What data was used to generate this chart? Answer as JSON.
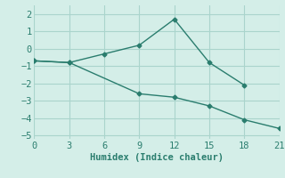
{
  "line1_x": [
    0,
    3,
    6,
    9,
    12,
    15,
    18
  ],
  "line1_y": [
    -0.7,
    -0.8,
    -0.3,
    0.2,
    1.7,
    -0.8,
    -2.1
  ],
  "line2_x": [
    0,
    3,
    9,
    12,
    15,
    18,
    21
  ],
  "line2_y": [
    -0.7,
    -0.8,
    -2.6,
    -2.8,
    -3.3,
    -4.1,
    -4.6
  ],
  "line_color": "#2a7d6e",
  "bg_color": "#d4eee8",
  "grid_color": "#aad4cc",
  "xlabel": "Humidex (Indice chaleur)",
  "xlim": [
    0,
    21
  ],
  "ylim": [
    -5.2,
    2.5
  ],
  "xticks": [
    0,
    3,
    6,
    9,
    12,
    15,
    18,
    21
  ],
  "yticks": [
    -5,
    -4,
    -3,
    -2,
    -1,
    0,
    1,
    2
  ],
  "marker": "D",
  "markersize": 2.5,
  "linewidth": 1.0,
  "tick_fontsize": 7.5
}
